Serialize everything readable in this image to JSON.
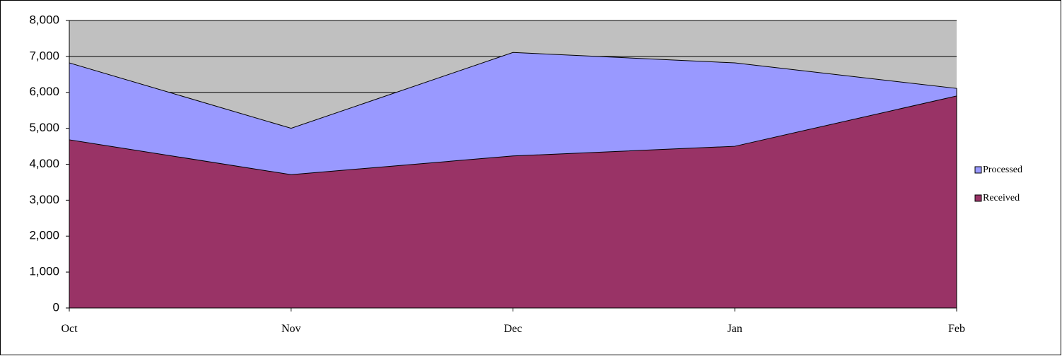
{
  "chart_data": {
    "type": "area",
    "categories": [
      "Oct",
      "Nov",
      "Dec",
      "Jan",
      "Feb"
    ],
    "series": [
      {
        "name": "Processed",
        "color": "#9999ff",
        "values": [
          6820,
          5000,
          7110,
          6820,
          6110
        ]
      },
      {
        "name": "Received",
        "color": "#993366",
        "values": [
          4680,
          3710,
          4230,
          4500,
          5900
        ]
      }
    ],
    "ylim": [
      0,
      8000
    ],
    "yticks": [
      {
        "value": 0,
        "label": "0"
      },
      {
        "value": 1000,
        "label": "1,000"
      },
      {
        "value": 2000,
        "label": "2,000"
      },
      {
        "value": 3000,
        "label": "3,000"
      },
      {
        "value": 4000,
        "label": "4,000"
      },
      {
        "value": 5000,
        "label": "5,000"
      },
      {
        "value": 6000,
        "label": "6,000"
      },
      {
        "value": 7000,
        "label": "7,000"
      },
      {
        "value": 8000,
        "label": "8,000"
      }
    ],
    "grid": true,
    "legend": "right"
  }
}
